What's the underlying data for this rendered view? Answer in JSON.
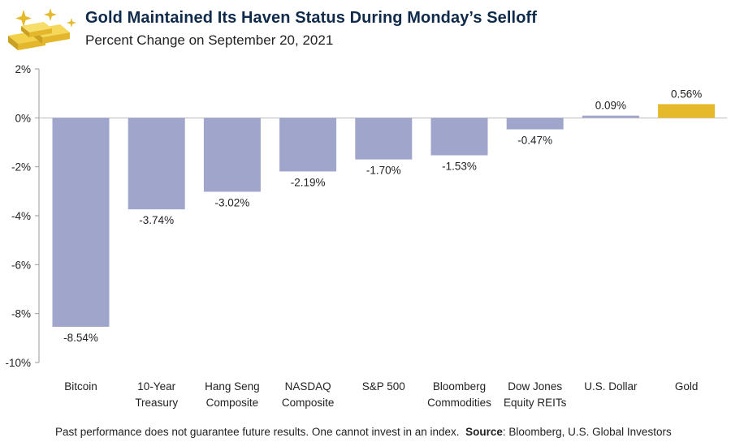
{
  "title": "Gold Maintained Its Haven Status During Monday’s Selloff",
  "subtitle": "Percent Change on September 20, 2021",
  "footer": {
    "disclaimer": "Past performance does not guarantee future results. One cannot invest in an index.",
    "source_label": "Source",
    "source_text": ": Bloomberg, U.S. Global Investors"
  },
  "colors": {
    "bar": "#a0a6cb",
    "highlight": "#e6b92b",
    "title": "#0f2a4a"
  },
  "icons": {
    "logo": "gold-bars-icon"
  },
  "chart_data": {
    "type": "bar",
    "title": "Gold Maintained Its Haven Status During Monday’s Selloff",
    "subtitle": "Percent Change on September 20, 2021",
    "categories": [
      [
        "Bitcoin"
      ],
      [
        "10-Year",
        "Treasury"
      ],
      [
        "Hang Seng",
        "Composite"
      ],
      [
        "NASDAQ",
        "Composite"
      ],
      [
        "S&P 500"
      ],
      [
        "Bloomberg",
        "Commodities"
      ],
      [
        "Dow Jones",
        "Equity REITs"
      ],
      [
        "U.S. Dollar"
      ],
      [
        "Gold"
      ]
    ],
    "values": [
      -8.54,
      -3.74,
      -3.02,
      -2.19,
      -1.7,
      -1.53,
      -0.47,
      0.09,
      0.56
    ],
    "value_labels": [
      "-8.54%",
      "-3.74%",
      "-3.02%",
      "-2.19%",
      "-1.70%",
      "-1.53%",
      "-0.47%",
      "0.09%",
      "0.56%"
    ],
    "highlight_index": 8,
    "ylim": [
      -10,
      2
    ],
    "yticks": [
      2,
      0,
      -2,
      -4,
      -6,
      -8,
      -10
    ],
    "ytick_labels": [
      "2%",
      "0%",
      "-2%",
      "-4%",
      "-6%",
      "-8%",
      "-10%"
    ],
    "xlabel": "",
    "ylabel": "",
    "grid": false,
    "legend": "none"
  }
}
